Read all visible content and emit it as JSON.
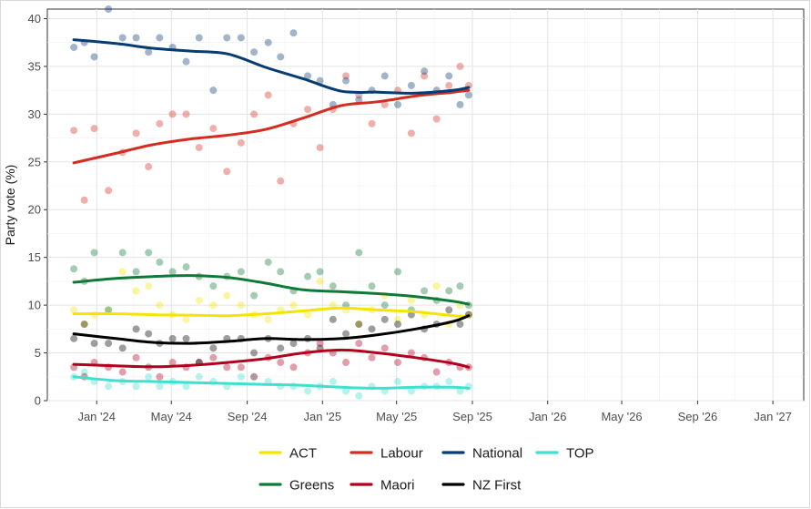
{
  "chart_data": {
    "type": "scatter",
    "subtype": "scatter with loess trend lines",
    "title": "",
    "xlabel": "",
    "ylabel": "Party vote (%)",
    "x_domain": [
      "2023-10-13",
      "2027-02-20"
    ],
    "ylim": [
      0,
      41
    ],
    "y_ticks": [
      0,
      5,
      10,
      15,
      20,
      25,
      30,
      35,
      40
    ],
    "x_ticks": [
      {
        "date": "2024-01-01",
        "label": "Jan '24"
      },
      {
        "date": "2024-05-01",
        "label": "May '24"
      },
      {
        "date": "2024-09-01",
        "label": "Sep '24"
      },
      {
        "date": "2025-01-01",
        "label": "Jan '25"
      },
      {
        "date": "2025-05-01",
        "label": "May '25"
      },
      {
        "date": "2025-09-01",
        "label": "Sep '25"
      },
      {
        "date": "2026-01-01",
        "label": "Jan '26"
      },
      {
        "date": "2026-05-01",
        "label": "May '26"
      },
      {
        "date": "2026-09-01",
        "label": "Sep '26"
      },
      {
        "date": "2027-01-01",
        "label": "Jan '27"
      }
    ],
    "grid": true,
    "legend_position": "bottom",
    "point_dates": [
      "2023-11-25",
      "2023-12-12",
      "2023-12-28",
      "2024-01-20",
      "2024-02-12",
      "2024-03-05",
      "2024-03-25",
      "2024-04-12",
      "2024-05-03",
      "2024-05-25",
      "2024-06-15",
      "2024-07-08",
      "2024-07-30",
      "2024-08-22",
      "2024-09-12",
      "2024-10-05",
      "2024-10-25",
      "2024-11-15",
      "2024-12-08",
      "2024-12-28",
      "2025-01-18",
      "2025-02-08",
      "2025-03-01",
      "2025-03-22",
      "2025-04-12",
      "2025-05-03",
      "2025-05-25",
      "2025-06-15",
      "2025-07-05",
      "2025-07-25",
      "2025-08-12",
      "2025-08-26"
    ],
    "trend_dates": [
      "2023-11-25",
      "2024-02-01",
      "2024-04-01",
      "2024-06-01",
      "2024-08-01",
      "2024-10-01",
      "2024-12-01",
      "2025-02-01",
      "2025-04-01",
      "2025-06-01",
      "2025-08-01",
      "2025-08-26"
    ],
    "series": [
      {
        "name": "National",
        "color": "#073b73",
        "trend": [
          37.8,
          37.4,
          36.9,
          36.6,
          36.3,
          34.9,
          33.7,
          32.4,
          32.3,
          32.2,
          32.5,
          32.8
        ],
        "points": [
          37,
          37.5,
          36,
          41,
          38,
          38,
          36.5,
          38,
          37,
          35.5,
          38,
          32.5,
          38,
          38,
          36.5,
          37.5,
          36,
          38.5,
          34,
          33.5,
          31,
          33.5,
          31.5,
          32.5,
          34,
          31,
          33,
          34.5,
          32.5,
          34,
          31,
          32
        ]
      },
      {
        "name": "Labour",
        "color": "#d52c21",
        "trend": [
          24.9,
          25.9,
          26.8,
          27.4,
          27.8,
          28.4,
          29.6,
          30.9,
          31.3,
          31.9,
          32.3,
          32.5
        ],
        "points": [
          28.3,
          21,
          28.5,
          22,
          26,
          28,
          24.5,
          29,
          30,
          30,
          26.5,
          28.5,
          24,
          27,
          30,
          32,
          23,
          29,
          30.5,
          26.5,
          30.5,
          34,
          32,
          29,
          31,
          32.5,
          28,
          34,
          29.5,
          33,
          35,
          33
        ]
      },
      {
        "name": "Greens",
        "color": "#0f7a37",
        "trend": [
          12.4,
          12.8,
          13.0,
          13.1,
          12.9,
          12.3,
          11.6,
          11.4,
          11.2,
          10.9,
          10.4,
          10.1
        ],
        "points": [
          13.8,
          12.5,
          15.5,
          9.5,
          15.5,
          13.5,
          15.5,
          14.5,
          13.5,
          14,
          13,
          12,
          13,
          13.5,
          11,
          14.5,
          13.5,
          11.5,
          13,
          13.5,
          12,
          10,
          15.5,
          12,
          10,
          13.5,
          9.5,
          11.5,
          10.5,
          11.5,
          12,
          10
        ]
      },
      {
        "name": "ACT",
        "color": "#f2e600",
        "trend": [
          9.1,
          9.1,
          9.0,
          8.95,
          8.9,
          9.1,
          9.4,
          9.7,
          9.5,
          9.3,
          8.9,
          8.8
        ],
        "points": [
          9.5,
          8,
          9,
          9.5,
          13.5,
          11.5,
          12,
          10,
          9,
          8.5,
          10.5,
          10,
          11,
          10,
          9,
          8.5,
          9.5,
          10,
          9,
          12.5,
          10,
          9.5,
          8,
          9.5,
          11,
          8.5,
          10.5,
          9,
          12,
          8,
          10,
          9
        ]
      },
      {
        "name": "NZ First",
        "color": "#000000",
        "trend": [
          7.0,
          6.5,
          6.1,
          6.0,
          6.2,
          6.5,
          6.4,
          6.5,
          6.9,
          7.5,
          8.3,
          8.9
        ],
        "points": [
          6.5,
          8,
          6,
          6,
          5.5,
          7.5,
          7,
          6,
          6.5,
          6.5,
          4,
          5.5,
          6.5,
          6.5,
          5,
          6.5,
          5.5,
          6,
          6.5,
          5.5,
          8.5,
          7,
          8,
          7.5,
          8.5,
          8,
          9,
          7.5,
          8,
          9.5,
          8,
          9
        ]
      },
      {
        "name": "Maori",
        "color": "#b2001f",
        "trend": [
          3.8,
          3.65,
          3.55,
          3.7,
          4.0,
          4.4,
          5.0,
          5.3,
          5.0,
          4.5,
          3.9,
          3.5
        ],
        "points": [
          3.5,
          2.5,
          4,
          3.5,
          3,
          4.5,
          3.5,
          2.5,
          4,
          3.5,
          4,
          4.5,
          3.5,
          3.5,
          2.5,
          4.5,
          4,
          3.5,
          5,
          6,
          5,
          4,
          6,
          4.5,
          5.5,
          4,
          5,
          4.5,
          3,
          4,
          3.5,
          3.5
        ]
      },
      {
        "name": "TOP",
        "color": "#40e0d0",
        "trend": [
          2.5,
          2.1,
          2.0,
          1.9,
          1.8,
          1.7,
          1.6,
          1.4,
          1.3,
          1.4,
          1.4,
          1.3
        ],
        "points": [
          2.5,
          3,
          2,
          1.5,
          2,
          1.5,
          2.5,
          1.5,
          2,
          1.5,
          2.5,
          2,
          1.5,
          2.5,
          2.5,
          2,
          1.5,
          1.5,
          1,
          1.5,
          2,
          1,
          0.5,
          1.5,
          1,
          2,
          1,
          1.5,
          1.5,
          2,
          1,
          1.5
        ]
      }
    ],
    "legend": [
      [
        "ACT",
        "Labour",
        "National",
        "TOP"
      ],
      [
        "Greens",
        "Maori",
        "NZ First"
      ]
    ]
  }
}
